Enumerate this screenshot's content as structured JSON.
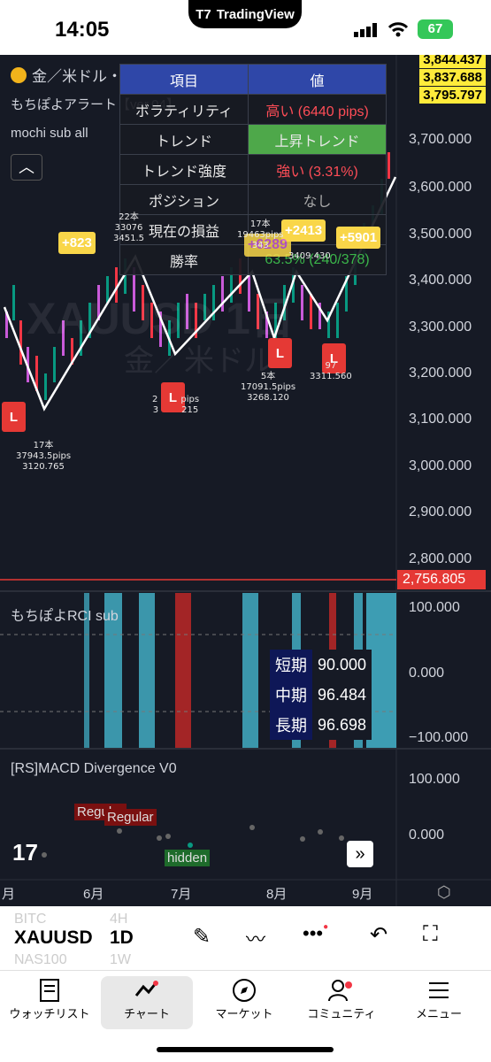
{
  "status": {
    "time": "14:05",
    "app_pill": "TradingView",
    "battery": "67"
  },
  "chart": {
    "symbol_title": "金／米ドル・1日",
    "indicator1": "もちぽよアラート【ver.04】",
    "indicator2": "mochi sub all",
    "watermark1": "XAUUSD 1日",
    "watermark2": "金／米ドル",
    "price_tags": [
      "3,844.437",
      "3,837.688",
      "3,795.797"
    ],
    "y_labels": [
      "3,700.000",
      "3,600.000",
      "3,500.000",
      "3,400.000",
      "3,300.000",
      "3,200.000",
      "3,100.000",
      "3,000.000",
      "2,900.000",
      "2,800.000"
    ],
    "red_line_tag": "2,756.805",
    "table": {
      "header": [
        "項目",
        "値"
      ],
      "rows": [
        [
          "ボラティリティ",
          "高い (6440 pips)"
        ],
        [
          "トレンド",
          "上昇トレンド"
        ],
        [
          "トレンド強度",
          "強い (3.31%)"
        ],
        [
          "ポジション",
          "なし"
        ],
        [
          "現在の損益",
          ""
        ],
        [
          "勝率",
          "63.5% (240/378)"
        ]
      ]
    },
    "markers": {
      "L": "L",
      "plus1": "+823",
      "plus2": "+2413",
      "plus3": "+5901",
      "pnl": "+6289",
      "a1": [
        "17本",
        "37943.5pips",
        "3120.765"
      ],
      "a2": [
        "22本",
        "33076",
        "3451.5"
      ],
      "a3": [
        "2",
        "pips",
        "3",
        "215"
      ],
      "a4": [
        "5本",
        "17091.5pips",
        "3268.120"
      ],
      "a5": [
        "17本",
        "19463pips",
        "343"
      ],
      "a6": [
        "3409.430"
      ],
      "a7": [
        "97",
        "3311.560"
      ]
    },
    "rci": {
      "title": "もちぽよRCI sub",
      "y": [
        "100.000",
        "0.000",
        "−100.000"
      ],
      "rows": [
        [
          "短期",
          "90.000"
        ],
        [
          "中期",
          "96.484"
        ],
        [
          "長期",
          "96.698"
        ]
      ]
    },
    "macd": {
      "title": "[RS]MACD Divergence V0",
      "y": [
        "100.000",
        "0.000"
      ],
      "regular1": "Regular",
      "regular2": "Regular",
      "hidden": "hidden"
    },
    "months": [
      "月",
      "6月",
      "7月",
      "8月",
      "9月"
    ]
  },
  "symbols": {
    "current": "XAUUSD",
    "ghost1": "BITC",
    "ghost2": "NAS100",
    "tf": "1D",
    "ghost_tf1": "4H",
    "ghost_tf2": "1W"
  },
  "nav": [
    "ウォッチリスト",
    "チャート",
    "マーケット",
    "コミュニティ",
    "メニュー"
  ]
}
